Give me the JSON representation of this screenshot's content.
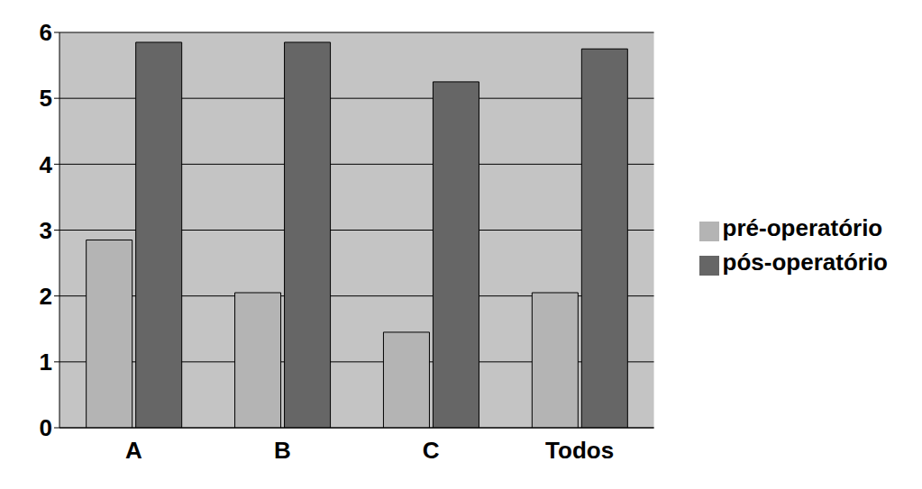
{
  "chart_data": {
    "type": "bar",
    "categories": [
      "A",
      "B",
      "C",
      "Todos"
    ],
    "series": [
      {
        "name": "pré-operatório",
        "color": "#b4b4b4",
        "values": [
          2.85,
          2.05,
          1.45,
          2.05
        ]
      },
      {
        "name": "pós-operatório",
        "color": "#666666",
        "values": [
          5.85,
          5.85,
          5.25,
          5.75
        ]
      }
    ],
    "ylim": [
      0,
      6
    ],
    "yticks": [
      0,
      1,
      2,
      3,
      4,
      5,
      6
    ],
    "grid": true,
    "legend": "right"
  }
}
